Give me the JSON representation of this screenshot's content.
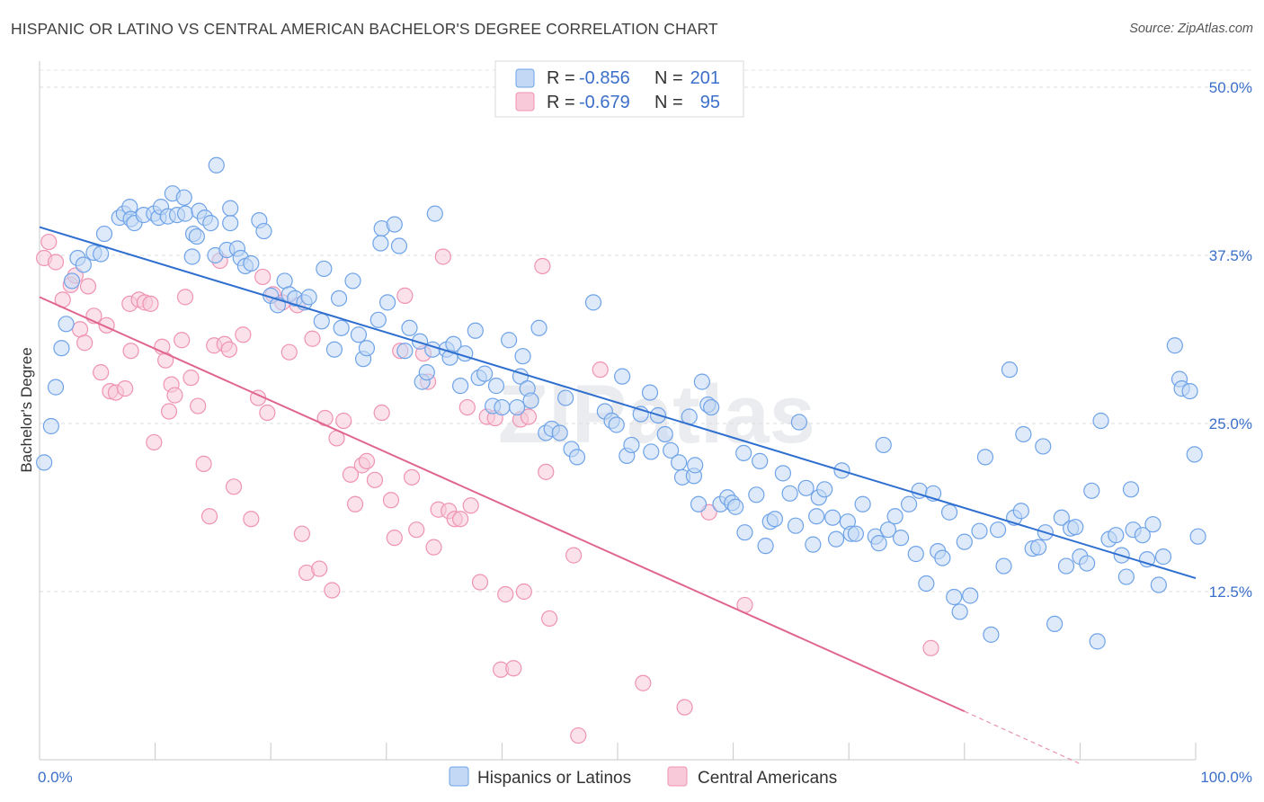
{
  "title": "HISPANIC OR LATINO VS CENTRAL AMERICAN BACHELOR'S DEGREE CORRELATION CHART",
  "source": "Source: ZipAtlas.com",
  "watermark": "ZIPatlas",
  "chart_data": {
    "type": "scatter",
    "xlabel": "",
    "ylabel": "Bachelor's Degree",
    "xlim": [
      0,
      100
    ],
    "ylim": [
      0,
      50
    ],
    "x_tick_labels": [
      "0.0%",
      "100.0%"
    ],
    "y_ticks": [
      12.5,
      25.0,
      37.5,
      50.0
    ],
    "y_tick_labels": [
      "12.5%",
      "25.0%",
      "37.5%",
      "50.0%"
    ],
    "grid": true,
    "legend_top": {
      "rows": [
        {
          "series": "Hispanics or Latinos",
          "r_label": "R =",
          "r_value": "-0.856",
          "n_label": "N =",
          "n_value": "201"
        },
        {
          "series": "Central Americans",
          "r_label": "R =",
          "r_value": "-0.679",
          "n_label": "N =",
          "n_value": "95"
        }
      ]
    },
    "series": [
      {
        "name": "Hispanics or Latinos",
        "color": "#6fa3e8",
        "fill": "#c2d8f4",
        "line_color": "#2f6fcf",
        "trend": {
          "x0": 0,
          "y0": 39.6,
          "x1": 100,
          "y1": 13.5
        },
        "points": [
          [
            0.4,
            22.1
          ],
          [
            1,
            24.8
          ],
          [
            1.4,
            27.7
          ],
          [
            1.9,
            30.6
          ],
          [
            2.3,
            32.4
          ],
          [
            2.8,
            35.6
          ],
          [
            3.3,
            37.3
          ],
          [
            3.8,
            36.8
          ],
          [
            4.7,
            37.7
          ],
          [
            5.3,
            37.6
          ],
          [
            5.6,
            39.1
          ],
          [
            6.9,
            40.3
          ],
          [
            7.3,
            40.6
          ],
          [
            7.8,
            41.1
          ],
          [
            7.9,
            40.2
          ],
          [
            8.2,
            39.9
          ],
          [
            9.0,
            40.5
          ],
          [
            9.9,
            40.6
          ],
          [
            10.3,
            40.3
          ],
          [
            10.5,
            41.1
          ],
          [
            11.1,
            40.4
          ],
          [
            11.5,
            42.1
          ],
          [
            11.9,
            40.5
          ],
          [
            12.5,
            41.8
          ],
          [
            12.6,
            40.6
          ],
          [
            13.3,
            39.1
          ],
          [
            13.6,
            38.9
          ],
          [
            13.2,
            37.4
          ],
          [
            13.8,
            40.8
          ],
          [
            14.3,
            40.3
          ],
          [
            14.8,
            39.9
          ],
          [
            15.2,
            37.5
          ],
          [
            15.3,
            44.2
          ],
          [
            16.2,
            37.9
          ],
          [
            16.5,
            39.9
          ],
          [
            16.5,
            41.0
          ],
          [
            17.1,
            38.0
          ],
          [
            17.4,
            37.3
          ],
          [
            17.8,
            36.7
          ],
          [
            18.3,
            36.9
          ],
          [
            19.0,
            40.1
          ],
          [
            19.4,
            39.3
          ],
          [
            20.0,
            34.5
          ],
          [
            20.6,
            33.8
          ],
          [
            21.2,
            35.6
          ],
          [
            21.6,
            34.6
          ],
          [
            22.1,
            34.3
          ],
          [
            22.9,
            34.0
          ],
          [
            23.3,
            34.4
          ],
          [
            24.4,
            32.6
          ],
          [
            24.6,
            36.5
          ],
          [
            25.5,
            30.5
          ],
          [
            25.9,
            34.3
          ],
          [
            26.1,
            32.1
          ],
          [
            27.1,
            35.6
          ],
          [
            27.6,
            31.6
          ],
          [
            28.0,
            29.8
          ],
          [
            28.3,
            30.6
          ],
          [
            29.3,
            32.7
          ],
          [
            29.6,
            39.5
          ],
          [
            29.5,
            38.4
          ],
          [
            30.1,
            34.0
          ],
          [
            30.7,
            39.8
          ],
          [
            31.1,
            38.2
          ],
          [
            31.6,
            30.4
          ],
          [
            32.0,
            32.1
          ],
          [
            32.9,
            31.1
          ],
          [
            33.1,
            28.1
          ],
          [
            33.5,
            28.8
          ],
          [
            34.0,
            30.5
          ],
          [
            34.2,
            40.6
          ],
          [
            35.2,
            30.5
          ],
          [
            35.5,
            29.9
          ],
          [
            35.8,
            30.9
          ],
          [
            36.4,
            27.8
          ],
          [
            36.8,
            30.2
          ],
          [
            37.7,
            31.9
          ],
          [
            38.0,
            28.4
          ],
          [
            38.5,
            28.7
          ],
          [
            39.2,
            26.3
          ],
          [
            39.5,
            27.8
          ],
          [
            40.0,
            26.2
          ],
          [
            41.3,
            26.2
          ],
          [
            40.6,
            31.2
          ],
          [
            41.6,
            28.5
          ],
          [
            41.8,
            30.0
          ],
          [
            42.2,
            27.6
          ],
          [
            42.5,
            26.7
          ],
          [
            43.2,
            32.1
          ],
          [
            43.8,
            24.3
          ],
          [
            44.3,
            24.6
          ],
          [
            45.0,
            24.3
          ],
          [
            45.5,
            26.9
          ],
          [
            46.0,
            23.1
          ],
          [
            46.5,
            22.5
          ],
          [
            47.9,
            34.0
          ],
          [
            48.9,
            25.9
          ],
          [
            49.5,
            25.2
          ],
          [
            49.9,
            24.9
          ],
          [
            50.4,
            28.5
          ],
          [
            50.8,
            22.6
          ],
          [
            51.2,
            23.4
          ],
          [
            52.0,
            25.7
          ],
          [
            52.8,
            27.3
          ],
          [
            52.9,
            22.9
          ],
          [
            53.5,
            25.6
          ],
          [
            54.1,
            24.2
          ],
          [
            54.6,
            23.0
          ],
          [
            55.3,
            22.1
          ],
          [
            55.6,
            21.0
          ],
          [
            56.2,
            25.5
          ],
          [
            56.6,
            21.1
          ],
          [
            56.7,
            21.9
          ],
          [
            57.0,
            19.0
          ],
          [
            57.3,
            28.1
          ],
          [
            57.8,
            26.4
          ],
          [
            58.1,
            26.2
          ],
          [
            58.9,
            19.0
          ],
          [
            59.5,
            19.5
          ],
          [
            59.9,
            19.1
          ],
          [
            60.2,
            18.8
          ],
          [
            60.9,
            22.8
          ],
          [
            61.0,
            16.9
          ],
          [
            62.0,
            19.7
          ],
          [
            62.3,
            22.2
          ],
          [
            62.8,
            15.9
          ],
          [
            63.2,
            17.7
          ],
          [
            63.6,
            17.9
          ],
          [
            64.3,
            21.3
          ],
          [
            64.9,
            19.8
          ],
          [
            65.4,
            17.4
          ],
          [
            65.7,
            25.1
          ],
          [
            66.3,
            20.2
          ],
          [
            66.9,
            16.0
          ],
          [
            67.2,
            18.1
          ],
          [
            67.4,
            19.5
          ],
          [
            67.9,
            20.1
          ],
          [
            68.6,
            18.0
          ],
          [
            68.9,
            16.4
          ],
          [
            69.4,
            21.5
          ],
          [
            69.9,
            17.7
          ],
          [
            70.2,
            16.8
          ],
          [
            70.6,
            16.8
          ],
          [
            71.2,
            19.0
          ],
          [
            72.3,
            16.6
          ],
          [
            72.6,
            16.1
          ],
          [
            73.0,
            23.4
          ],
          [
            73.4,
            17.1
          ],
          [
            74.0,
            18.1
          ],
          [
            74.5,
            16.5
          ],
          [
            75.2,
            19.0
          ],
          [
            75.8,
            15.3
          ],
          [
            76.1,
            20.0
          ],
          [
            76.7,
            13.1
          ],
          [
            77.3,
            19.8
          ],
          [
            77.7,
            15.5
          ],
          [
            78.1,
            15.0
          ],
          [
            78.7,
            18.4
          ],
          [
            79.1,
            12.1
          ],
          [
            79.6,
            11.0
          ],
          [
            80.0,
            16.2
          ],
          [
            80.5,
            12.2
          ],
          [
            81.3,
            17.0
          ],
          [
            81.8,
            22.5
          ],
          [
            82.3,
            9.3
          ],
          [
            82.9,
            17.1
          ],
          [
            83.4,
            14.4
          ],
          [
            83.9,
            29.0
          ],
          [
            84.3,
            18.0
          ],
          [
            84.9,
            18.5
          ],
          [
            85.1,
            24.2
          ],
          [
            85.9,
            15.7
          ],
          [
            86.4,
            15.8
          ],
          [
            86.8,
            23.3
          ],
          [
            87.0,
            16.9
          ],
          [
            87.8,
            10.1
          ],
          [
            88.4,
            18.0
          ],
          [
            88.8,
            14.4
          ],
          [
            89.2,
            17.2
          ],
          [
            89.6,
            17.3
          ],
          [
            90.0,
            15.1
          ],
          [
            90.6,
            14.6
          ],
          [
            91.0,
            20.0
          ],
          [
            91.5,
            8.8
          ],
          [
            91.8,
            25.2
          ],
          [
            92.5,
            16.4
          ],
          [
            93.1,
            16.7
          ],
          [
            93.6,
            15.2
          ],
          [
            94.0,
            13.6
          ],
          [
            94.4,
            20.1
          ],
          [
            94.6,
            17.1
          ],
          [
            95.4,
            16.7
          ],
          [
            95.8,
            14.9
          ],
          [
            96.3,
            17.5
          ],
          [
            96.8,
            13.0
          ],
          [
            97.2,
            15.1
          ],
          [
            98.2,
            30.8
          ],
          [
            98.6,
            28.3
          ],
          [
            98.8,
            27.6
          ],
          [
            99.5,
            27.4
          ],
          [
            99.9,
            22.7
          ],
          [
            100.2,
            16.6
          ]
        ]
      },
      {
        "name": "Central Americans",
        "color": "#ef93b2",
        "fill": "#f8cad9",
        "line_color": "#e0658f",
        "trend": {
          "x0": 0,
          "y0": 34.4,
          "x1": 80,
          "y1": 3.6
        },
        "trend_dashed": {
          "x0": 80,
          "y0": 3.6,
          "x1": 90,
          "y1": -0.3
        },
        "points": [
          [
            0.4,
            37.3
          ],
          [
            0.8,
            38.5
          ],
          [
            1.4,
            37.0
          ],
          [
            2.0,
            34.2
          ],
          [
            2.7,
            35.3
          ],
          [
            3.1,
            36.0
          ],
          [
            3.5,
            32.0
          ],
          [
            3.9,
            31.0
          ],
          [
            4.2,
            35.2
          ],
          [
            4.7,
            33.0
          ],
          [
            5.3,
            28.8
          ],
          [
            5.8,
            32.3
          ],
          [
            6.1,
            27.4
          ],
          [
            6.6,
            27.3
          ],
          [
            7.4,
            27.6
          ],
          [
            7.8,
            33.9
          ],
          [
            7.9,
            30.4
          ],
          [
            8.6,
            34.2
          ],
          [
            9.1,
            34.0
          ],
          [
            9.6,
            33.9
          ],
          [
            9.9,
            23.6
          ],
          [
            10.6,
            30.7
          ],
          [
            10.9,
            29.7
          ],
          [
            11.2,
            25.9
          ],
          [
            11.4,
            27.9
          ],
          [
            11.7,
            27.1
          ],
          [
            12.3,
            31.2
          ],
          [
            12.6,
            34.4
          ],
          [
            13.1,
            28.4
          ],
          [
            13.7,
            26.3
          ],
          [
            14.2,
            22.0
          ],
          [
            14.7,
            18.1
          ],
          [
            15.1,
            30.8
          ],
          [
            15.6,
            37.1
          ],
          [
            16.0,
            30.9
          ],
          [
            16.4,
            30.5
          ],
          [
            16.8,
            20.3
          ],
          [
            17.6,
            31.6
          ],
          [
            18.3,
            17.9
          ],
          [
            18.9,
            26.9
          ],
          [
            19.3,
            35.9
          ],
          [
            19.7,
            25.8
          ],
          [
            20.2,
            34.6
          ],
          [
            21.0,
            34.0
          ],
          [
            21.6,
            30.3
          ],
          [
            22.3,
            33.8
          ],
          [
            22.7,
            16.8
          ],
          [
            23.1,
            13.9
          ],
          [
            23.6,
            31.3
          ],
          [
            24.2,
            14.2
          ],
          [
            24.7,
            25.4
          ],
          [
            25.3,
            12.6
          ],
          [
            25.7,
            23.9
          ],
          [
            26.3,
            25.2
          ],
          [
            26.9,
            21.2
          ],
          [
            27.3,
            19.0
          ],
          [
            27.9,
            21.9
          ],
          [
            28.3,
            22.2
          ],
          [
            29.0,
            20.8
          ],
          [
            29.6,
            25.8
          ],
          [
            30.4,
            19.3
          ],
          [
            30.7,
            16.5
          ],
          [
            31.2,
            30.4
          ],
          [
            31.6,
            34.5
          ],
          [
            32.2,
            21.0
          ],
          [
            32.6,
            17.1
          ],
          [
            33.2,
            30.2
          ],
          [
            33.6,
            28.1
          ],
          [
            34.1,
            15.8
          ],
          [
            34.5,
            18.6
          ],
          [
            34.9,
            37.4
          ],
          [
            35.4,
            18.5
          ],
          [
            35.9,
            17.9
          ],
          [
            36.4,
            17.9
          ],
          [
            37.0,
            26.2
          ],
          [
            37.3,
            18.9
          ],
          [
            38.1,
            13.2
          ],
          [
            38.7,
            25.5
          ],
          [
            39.4,
            25.4
          ],
          [
            39.9,
            6.7
          ],
          [
            40.3,
            12.3
          ],
          [
            41.0,
            6.8
          ],
          [
            41.6,
            25.3
          ],
          [
            41.9,
            12.5
          ],
          [
            42.3,
            25.5
          ],
          [
            43.5,
            36.7
          ],
          [
            43.8,
            21.4
          ],
          [
            44.1,
            10.5
          ],
          [
            46.2,
            15.2
          ],
          [
            46.6,
            1.8
          ],
          [
            48.5,
            29.0
          ],
          [
            52.2,
            5.7
          ],
          [
            55.8,
            3.9
          ],
          [
            57.9,
            18.4
          ],
          [
            61.0,
            11.5
          ],
          [
            77.1,
            8.3
          ]
        ]
      }
    ]
  }
}
